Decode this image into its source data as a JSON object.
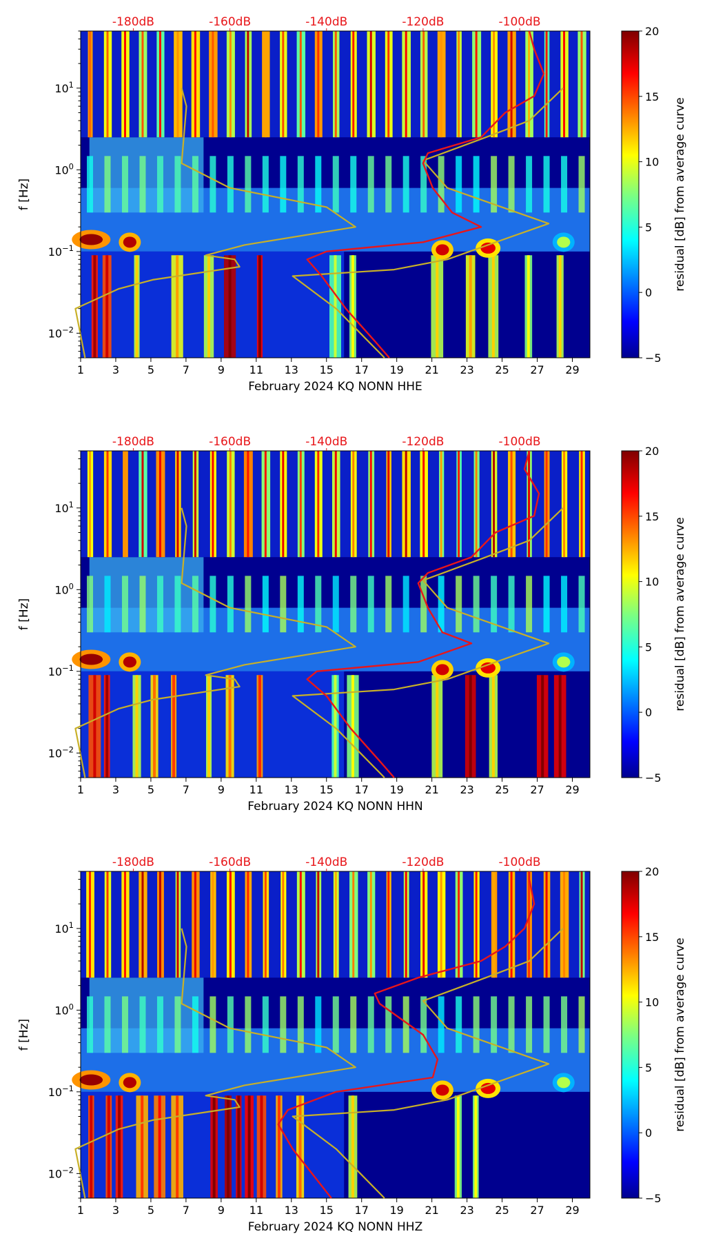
{
  "chart_data": [
    {
      "type": "heatmap",
      "xlabel": "February 2024 KQ NONN  HHE",
      "ylabel": "f [Hz]",
      "x_ticks": [
        "1",
        "3",
        "5",
        "7",
        "9",
        "11",
        "13",
        "15",
        "17",
        "19",
        "21",
        "23",
        "25",
        "27",
        "29"
      ],
      "y_ticks": [
        "10^-2",
        "10^-1",
        "10^0",
        "10^1"
      ],
      "xlim": [
        1,
        30
      ],
      "ylim_hz": [
        0.005,
        50
      ],
      "top_axis_labels": [
        "-180dB",
        "-160dB",
        "-140dB",
        "-120dB",
        "-100dB"
      ],
      "top_axis_values_db": [
        -180,
        -160,
        -140,
        -120,
        -100
      ],
      "colorbar": {
        "label": "residual [dB] from average curve",
        "ticks": [
          "20",
          "15",
          "10",
          "5",
          "0",
          "−5"
        ],
        "range": [
          -5,
          20
        ]
      },
      "series": [
        {
          "name": "noise-model-low",
          "color": "#c8b028",
          "points": [
            [
              -190,
              0.005
            ],
            [
              -191,
              0.01
            ],
            [
              -192,
              0.02
            ],
            [
              -183,
              0.035
            ],
            [
              -176,
              0.045
            ],
            [
              -158,
              0.065
            ],
            [
              -159,
              0.08
            ],
            [
              -165,
              0.09
            ],
            [
              -157,
              0.12
            ],
            [
              -134,
              0.2
            ],
            [
              -140,
              0.35
            ],
            [
              -160,
              0.6
            ],
            [
              -170,
              1.2
            ],
            [
              -169,
              6
            ],
            [
              -170,
              10
            ]
          ]
        },
        {
          "name": "noise-model-high",
          "color": "#c8b028",
          "points": [
            [
              -128,
              0.005
            ],
            [
              -138,
              0.02
            ],
            [
              -147,
              0.05
            ],
            [
              -126,
              0.06
            ],
            [
              -115,
              0.08
            ],
            [
              -102,
              0.15
            ],
            [
              -94,
              0.22
            ],
            [
              -115,
              0.6
            ],
            [
              -120,
              1.3
            ],
            [
              -107,
              2.5
            ],
            [
              -98,
              4
            ],
            [
              -91,
              10
            ]
          ]
        },
        {
          "name": "station-median",
          "color": "#e8161a",
          "points": [
            [
              -127,
              0.005
            ],
            [
              -130,
              0.008
            ],
            [
              -136,
              0.02
            ],
            [
              -141,
              0.05
            ],
            [
              -144,
              0.08
            ],
            [
              -140,
              0.1
            ],
            [
              -120,
              0.13
            ],
            [
              -108,
              0.2
            ],
            [
              -114,
              0.3
            ],
            [
              -118,
              0.6
            ],
            [
              -120,
              1.2
            ],
            [
              -119,
              1.6
            ],
            [
              -108,
              2.5
            ],
            [
              -103,
              5
            ],
            [
              -97,
              8
            ],
            [
              -95,
              15
            ],
            [
              -97,
              30
            ],
            [
              -98,
              50
            ]
          ]
        }
      ]
    },
    {
      "type": "heatmap",
      "xlabel": "February 2024 KQ NONN  HHN",
      "ylabel": "f [Hz]",
      "x_ticks": [
        "1",
        "3",
        "5",
        "7",
        "9",
        "11",
        "13",
        "15",
        "17",
        "19",
        "21",
        "23",
        "25",
        "27",
        "29"
      ],
      "y_ticks": [
        "10^-2",
        "10^-1",
        "10^0",
        "10^1"
      ],
      "xlim": [
        1,
        30
      ],
      "ylim_hz": [
        0.005,
        50
      ],
      "top_axis_labels": [
        "-180dB",
        "-160dB",
        "-140dB",
        "-120dB",
        "-100dB"
      ],
      "top_axis_values_db": [
        -180,
        -160,
        -140,
        -120,
        -100
      ],
      "colorbar": {
        "label": "residual [dB] from average curve",
        "ticks": [
          "20",
          "15",
          "10",
          "5",
          "0",
          "−5"
        ],
        "range": [
          -5,
          20
        ]
      },
      "series": [
        {
          "name": "noise-model-low",
          "color": "#c8b028",
          "points": [
            [
              -190,
              0.005
            ],
            [
              -191,
              0.01
            ],
            [
              -192,
              0.02
            ],
            [
              -183,
              0.035
            ],
            [
              -176,
              0.045
            ],
            [
              -158,
              0.065
            ],
            [
              -159,
              0.08
            ],
            [
              -165,
              0.09
            ],
            [
              -157,
              0.12
            ],
            [
              -134,
              0.2
            ],
            [
              -140,
              0.35
            ],
            [
              -160,
              0.6
            ],
            [
              -170,
              1.2
            ],
            [
              -169,
              6
            ],
            [
              -170,
              10
            ]
          ]
        },
        {
          "name": "noise-model-high",
          "color": "#c8b028",
          "points": [
            [
              -128,
              0.005
            ],
            [
              -138,
              0.02
            ],
            [
              -147,
              0.05
            ],
            [
              -126,
              0.06
            ],
            [
              -115,
              0.08
            ],
            [
              -102,
              0.15
            ],
            [
              -94,
              0.22
            ],
            [
              -115,
              0.6
            ],
            [
              -120,
              1.3
            ],
            [
              -107,
              2.5
            ],
            [
              -98,
              4
            ],
            [
              -91,
              10
            ]
          ]
        },
        {
          "name": "station-median",
          "color": "#e8161a",
          "points": [
            [
              -126,
              0.005
            ],
            [
              -129,
              0.008
            ],
            [
              -135,
              0.02
            ],
            [
              -140,
              0.05
            ],
            [
              -144,
              0.08
            ],
            [
              -142,
              0.1
            ],
            [
              -121,
              0.13
            ],
            [
              -110,
              0.22
            ],
            [
              -116,
              0.3
            ],
            [
              -119,
              0.6
            ],
            [
              -121,
              1.2
            ],
            [
              -119,
              1.6
            ],
            [
              -110,
              2.5
            ],
            [
              -105,
              5
            ],
            [
              -97,
              8
            ],
            [
              -96,
              15
            ],
            [
              -99,
              30
            ],
            [
              -98,
              50
            ]
          ]
        }
      ]
    },
    {
      "type": "heatmap",
      "xlabel": "February 2024 KQ NONN  HHZ",
      "ylabel": "f [Hz]",
      "x_ticks": [
        "1",
        "3",
        "5",
        "7",
        "9",
        "11",
        "13",
        "15",
        "17",
        "19",
        "21",
        "23",
        "25",
        "27",
        "29"
      ],
      "y_ticks": [
        "10^-2",
        "10^-1",
        "10^0",
        "10^1"
      ],
      "xlim": [
        1,
        30
      ],
      "ylim_hz": [
        0.005,
        50
      ],
      "top_axis_labels": [
        "-180dB",
        "-160dB",
        "-140dB",
        "-120dB",
        "-100dB"
      ],
      "top_axis_values_db": [
        -180,
        -160,
        -140,
        -120,
        -100
      ],
      "colorbar": {
        "label": "residual [dB] from average curve",
        "ticks": [
          "20",
          "15",
          "10",
          "5",
          "0",
          "−5"
        ],
        "range": [
          -5,
          20
        ]
      },
      "series": [
        {
          "name": "noise-model-low",
          "color": "#c8b028",
          "points": [
            [
              -190,
              0.005
            ],
            [
              -191,
              0.01
            ],
            [
              -192,
              0.02
            ],
            [
              -183,
              0.035
            ],
            [
              -176,
              0.045
            ],
            [
              -158,
              0.065
            ],
            [
              -159,
              0.08
            ],
            [
              -165,
              0.09
            ],
            [
              -157,
              0.12
            ],
            [
              -134,
              0.2
            ],
            [
              -140,
              0.35
            ],
            [
              -160,
              0.6
            ],
            [
              -170,
              1.2
            ],
            [
              -169,
              6
            ],
            [
              -170,
              10
            ]
          ]
        },
        {
          "name": "noise-model-high",
          "color": "#c8b028",
          "points": [
            [
              -128,
              0.005
            ],
            [
              -138,
              0.02
            ],
            [
              -147,
              0.05
            ],
            [
              -126,
              0.06
            ],
            [
              -115,
              0.08
            ],
            [
              -102,
              0.15
            ],
            [
              -94,
              0.22
            ],
            [
              -115,
              0.6
            ],
            [
              -120,
              1.3
            ],
            [
              -107,
              2.5
            ],
            [
              -98,
              4
            ],
            [
              -91,
              10
            ]
          ]
        },
        {
          "name": "station-median",
          "color": "#e8161a",
          "points": [
            [
              -139,
              0.005
            ],
            [
              -143,
              0.01
            ],
            [
              -147,
              0.02
            ],
            [
              -150,
              0.04
            ],
            [
              -148,
              0.06
            ],
            [
              -138,
              0.1
            ],
            [
              -118,
              0.15
            ],
            [
              -117,
              0.25
            ],
            [
              -120,
              0.5
            ],
            [
              -129,
              1.2
            ],
            [
              -130,
              1.6
            ],
            [
              -121,
              2.5
            ],
            [
              -108,
              4
            ],
            [
              -103,
              6
            ],
            [
              -99,
              10
            ],
            [
              -97,
              20
            ],
            [
              -98,
              40
            ],
            [
              -98,
              50
            ]
          ]
        }
      ]
    }
  ]
}
